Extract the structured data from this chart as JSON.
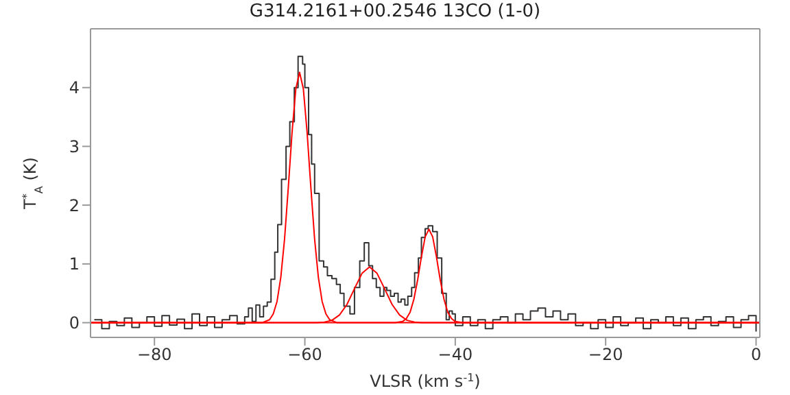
{
  "chart_data": {
    "type": "step",
    "title": "G314.2161+00.2546 13CO (1-0)",
    "xlabel": "VLSR (km s$^{-1}$)",
    "ylabel": "T$^{*}$$_{A}$ (K)",
    "xlim": [
      -88.5,
      0.5
    ],
    "xticks": [
      -80,
      -60,
      -40,
      -20,
      0
    ],
    "ylim": [
      -0.25,
      5.0
    ],
    "yticks": [
      0,
      1,
      2,
      3,
      4
    ],
    "marker": "none",
    "series": [
      {
        "color": "#333333",
        "x": [
          -88,
          -87,
          -86,
          -85,
          -84,
          -83,
          -82,
          -81,
          -80,
          -79,
          -78,
          -77,
          -76,
          -75,
          -74,
          -73,
          -72,
          -71,
          -70,
          -69,
          -68,
          -67.5,
          -67,
          -66.5,
          -66,
          -65.5,
          -65,
          -64.5,
          -64,
          -63.6,
          -63.1,
          -62.5,
          -62,
          -61.4,
          -60.9,
          -60.3,
          -60,
          -59.5,
          -59.1,
          -58.7,
          -58.1,
          -57.5,
          -57,
          -56.4,
          -55.8,
          -55.3,
          -54.8,
          -54,
          -53.4,
          -52.7,
          -52.1,
          -51.5,
          -51,
          -50.5,
          -50,
          -49.5,
          -49.1,
          -48.6,
          -48.1,
          -47.6,
          -47.2,
          -46.7,
          -46.3,
          -45.8,
          -45.4,
          -44.9,
          -44.5,
          -44,
          -43.6,
          -43,
          -42.4,
          -41.8,
          -41.2,
          -40.8,
          -40.4,
          -40,
          -39,
          -38,
          -37,
          -36,
          -35,
          -34,
          -33,
          -32,
          -31,
          -30,
          -29,
          -28,
          -27,
          -26,
          -25,
          -24,
          -23,
          -22,
          -21,
          -20,
          -19,
          -18,
          -17,
          -16,
          -15,
          -14,
          -13,
          -12,
          -11,
          -10,
          -9,
          -8,
          -7,
          -6,
          -5,
          -4,
          -3,
          -2,
          -1,
          0
        ],
        "values": [
          0.05,
          -0.1,
          0.02,
          -0.05,
          0.08,
          -0.08,
          0.0,
          0.1,
          -0.06,
          0.12,
          -0.04,
          0.06,
          -0.1,
          0.15,
          -0.05,
          0.1,
          -0.08,
          0.05,
          0.12,
          -0.02,
          0.1,
          0.25,
          0.02,
          0.3,
          0.1,
          0.28,
          0.35,
          0.74,
          1.2,
          1.67,
          2.44,
          3.0,
          3.42,
          4.0,
          4.53,
          4.4,
          4.0,
          3.2,
          2.7,
          2.2,
          1.05,
          0.95,
          0.8,
          0.75,
          0.65,
          0.5,
          0.28,
          0.15,
          0.6,
          1.05,
          1.36,
          0.97,
          0.75,
          0.6,
          0.45,
          0.6,
          0.55,
          0.45,
          0.5,
          0.35,
          0.4,
          0.3,
          0.45,
          0.6,
          0.85,
          1.1,
          1.45,
          1.6,
          1.65,
          1.55,
          1.1,
          0.5,
          0.05,
          0.2,
          0.15,
          -0.05,
          0.1,
          -0.05,
          0.05,
          -0.1,
          0.05,
          0.1,
          0.0,
          0.15,
          0.05,
          0.2,
          0.25,
          0.1,
          0.2,
          0.05,
          0.15,
          -0.05,
          0.0,
          -0.1,
          0.05,
          -0.08,
          0.1,
          -0.05,
          0.0,
          0.08,
          -0.1,
          0.05,
          0.0,
          0.1,
          -0.05,
          0.08,
          -0.1,
          0.05,
          0.1,
          -0.05,
          0.02,
          0.1,
          -0.08,
          0.05,
          0.12,
          -0.15
        ]
      },
      {
        "type": "line",
        "color": "#ff0000",
        "x": [
          -88.5,
          -65.7,
          -64.7,
          -64.2,
          -63.7,
          -63.2,
          -62.7,
          -62.2,
          -61.7,
          -61.2,
          -60.7,
          -60.2,
          -59.7,
          -59.2,
          -58.7,
          -58.2,
          -57.7,
          -57.2,
          -56.7,
          -55.7,
          0.5
        ],
        "values": [
          0,
          0,
          0.05,
          0.15,
          0.36,
          0.77,
          1.42,
          2.3,
          3.24,
          3.98,
          4.26,
          3.98,
          3.24,
          2.3,
          1.42,
          0.77,
          0.36,
          0.15,
          0.05,
          0,
          0
        ]
      },
      {
        "type": "line",
        "color": "#ff0000",
        "x": [
          -88.5,
          -58.4,
          -57.4,
          -56.4,
          -55.4,
          -54.4,
          -53.4,
          -52.4,
          -51.4,
          -50.4,
          -49.4,
          -48.4,
          -47.4,
          -46.4,
          -45.4,
          -44.4,
          0.5
        ],
        "values": [
          0,
          0,
          0.01,
          0.04,
          0.13,
          0.31,
          0.58,
          0.84,
          0.95,
          0.84,
          0.58,
          0.31,
          0.13,
          0.04,
          0.01,
          0,
          0
        ]
      },
      {
        "type": "line",
        "color": "#ff0000",
        "x": [
          -88.5,
          -48,
          -47,
          -46.5,
          -46,
          -45.5,
          -45,
          -44.5,
          -44,
          -43.5,
          -43,
          -42.5,
          -42,
          -41.5,
          -41,
          -40.5,
          -40,
          -39,
          0.5
        ],
        "values": [
          0,
          0,
          0.02,
          0.07,
          0.18,
          0.4,
          0.73,
          1.12,
          1.46,
          1.59,
          1.46,
          1.12,
          0.73,
          0.4,
          0.18,
          0.07,
          0.02,
          0,
          0
        ]
      }
    ]
  }
}
